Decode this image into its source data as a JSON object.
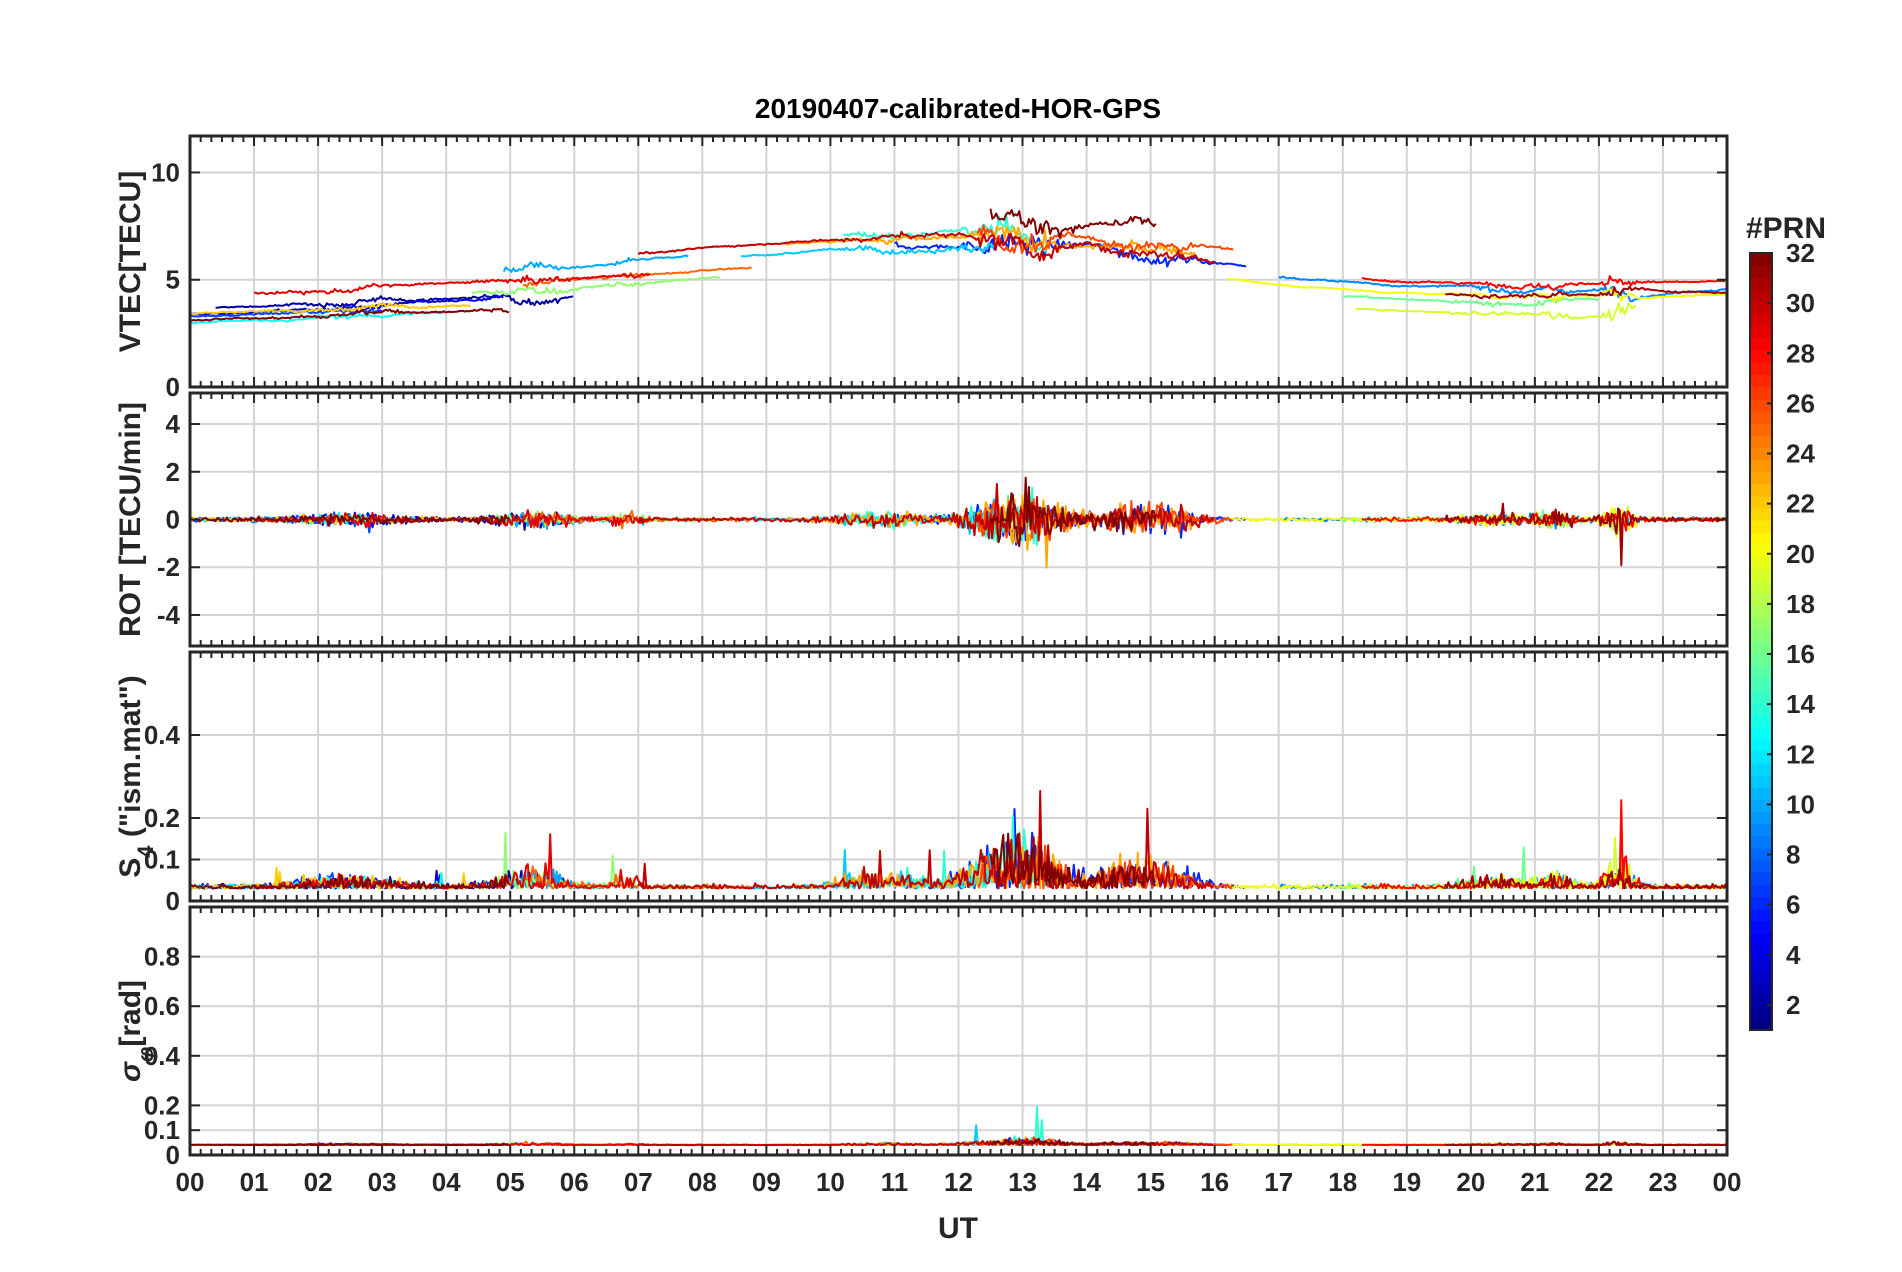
{
  "chart_data": {
    "type": "line",
    "title": "20190407-calibrated-HOR-GPS",
    "xlabel": "UT",
    "x_ticks": [
      "00",
      "01",
      "02",
      "03",
      "04",
      "05",
      "06",
      "07",
      "08",
      "09",
      "10",
      "11",
      "12",
      "13",
      "14",
      "15",
      "16",
      "17",
      "18",
      "19",
      "20",
      "21",
      "22",
      "23",
      "00"
    ],
    "x_range_hours": [
      0,
      24
    ],
    "panels": [
      {
        "id": "vtec",
        "ylabel": "VTEC[TECU]",
        "ylim": [
          0,
          11.7
        ],
        "yticks": [
          0,
          5,
          10
        ],
        "ytick_labels": [
          "0",
          "5",
          "10"
        ],
        "kind": "vtec"
      },
      {
        "id": "rot",
        "ylabel": "ROT [TECU/min]",
        "ylim": [
          -5.3,
          5.3
        ],
        "yticks": [
          -4,
          -2,
          0,
          2,
          4
        ],
        "ytick_labels": [
          "-4",
          "-2",
          "0",
          "2",
          "4"
        ],
        "kind": "rot"
      },
      {
        "id": "s4",
        "ylabel": "S4 (\"ism.mat\")",
        "ylabel_main": "S",
        "ylabel_sub": "4",
        "ylabel_rest": " (\"ism.mat\")",
        "ylim": [
          0,
          0.6
        ],
        "yticks": [
          0,
          0.1,
          0.2,
          0.4
        ],
        "ytick_labels": [
          "0",
          "0.1",
          "0.2",
          "0.4"
        ],
        "kind": "s4"
      },
      {
        "id": "sigma",
        "ylabel": "σφ[rad]",
        "ylabel_main": "σ",
        "ylabel_sub": "φ",
        "ylabel_rest": "[rad]",
        "ylim": [
          0,
          1
        ],
        "yticks": [
          0,
          0.1,
          0.2,
          0.4,
          0.6,
          0.8
        ],
        "ytick_labels": [
          "0",
          "0.1",
          "0.2",
          "0.4",
          "0.6",
          "0.8"
        ],
        "kind": "sigma"
      }
    ],
    "colorbar": {
      "label": "#PRN",
      "range": [
        1,
        32
      ],
      "ticks": [
        2,
        4,
        6,
        8,
        10,
        12,
        14,
        16,
        18,
        20,
        22,
        24,
        26,
        28,
        30,
        32
      ],
      "colormap": "jet"
    },
    "series_note": "One line per GPS PRN 1-32; color encodes PRN via jet colormap",
    "series": [
      {
        "prn": 2,
        "start": 0.4,
        "end": 6.0,
        "base": 3.6
      },
      {
        "prn": 4,
        "start": 0.0,
        "end": 4.9,
        "base": 3.2
      },
      {
        "prn": 6,
        "start": 11.0,
        "end": 16.5,
        "base": 6.0
      },
      {
        "prn": 7,
        "start": 0.0,
        "end": 3.0,
        "base": 3.0
      },
      {
        "prn": 9,
        "start": 17.0,
        "end": 24.0,
        "base": 5.2
      },
      {
        "prn": 10,
        "start": 4.9,
        "end": 7.8,
        "base": 5.8
      },
      {
        "prn": 11,
        "start": 8.6,
        "end": 12.6,
        "base": 5.6
      },
      {
        "prn": 13,
        "start": 0.0,
        "end": 4.0,
        "base": 2.4
      },
      {
        "prn": 14,
        "start": 10.2,
        "end": 13.4,
        "base": 7.0
      },
      {
        "prn": 16,
        "start": 18.0,
        "end": 22.0,
        "base": 4.0
      },
      {
        "prn": 17,
        "start": 4.4,
        "end": 8.3,
        "base": 4.0
      },
      {
        "prn": 19,
        "start": 18.2,
        "end": 22.6,
        "base": 3.0
      },
      {
        "prn": 20,
        "start": 16.2,
        "end": 24.0,
        "base": 4.6
      },
      {
        "prn": 22,
        "start": 0.0,
        "end": 4.4,
        "base": 3.2
      },
      {
        "prn": 23,
        "start": 9.3,
        "end": 15.7,
        "base": 6.4
      },
      {
        "prn": 25,
        "start": 5.2,
        "end": 8.8,
        "base": 4.6
      },
      {
        "prn": 26,
        "start": 12.3,
        "end": 16.3,
        "base": 6.8
      },
      {
        "prn": 28,
        "start": 18.3,
        "end": 24.0,
        "base": 5.6
      },
      {
        "prn": 29,
        "start": 1.0,
        "end": 7.2,
        "base": 4.8
      },
      {
        "prn": 30,
        "start": 7.0,
        "end": 16.0,
        "base": 6.6
      },
      {
        "prn": 31,
        "start": 19.6,
        "end": 24.0,
        "base": 4.6
      },
      {
        "prn": 32,
        "start": 12.5,
        "end": 15.1,
        "base": 8.6
      },
      {
        "prn": 32,
        "start": 0.0,
        "end": 5.0,
        "base": 2.6
      }
    ]
  }
}
